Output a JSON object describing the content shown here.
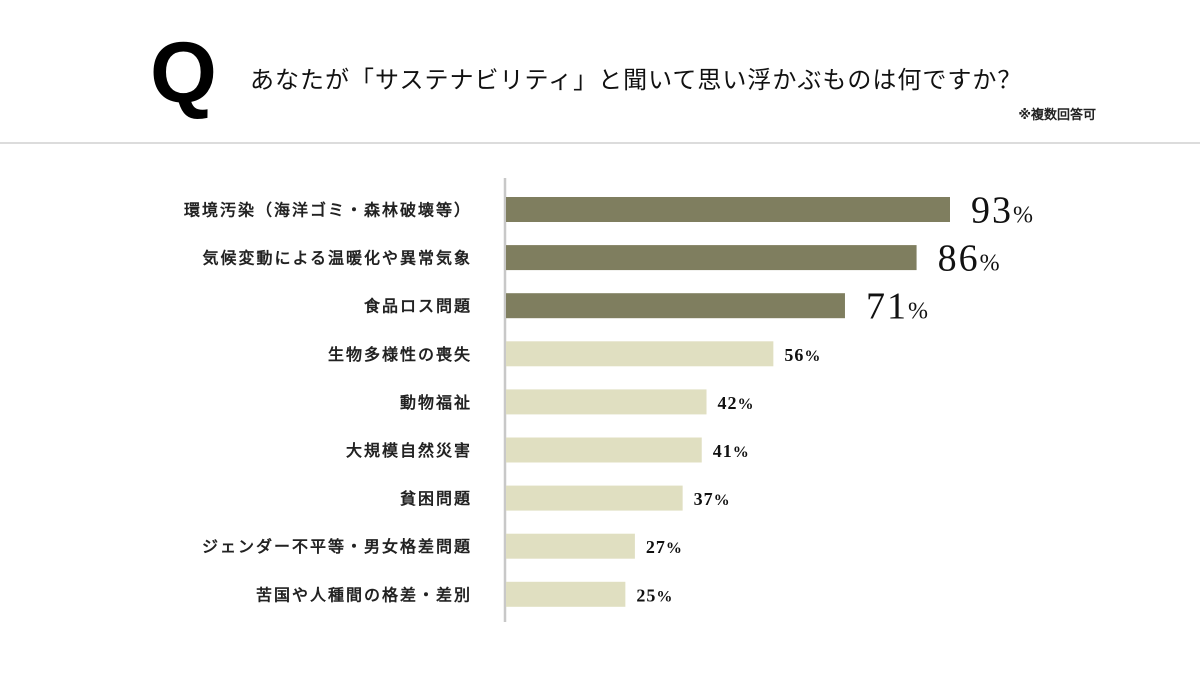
{
  "header": {
    "q_mark": "Q",
    "question": "あなたが「サステナビリティ」と聞いて思い浮かぶものは何ですか？",
    "note": "※複数回答可"
  },
  "chart_data": {
    "type": "bar",
    "orientation": "horizontal",
    "categories": [
      "環境汚染（海洋ゴミ・森林破壊等）",
      "気候変動による温暖化や異常気象",
      "食品ロス問題",
      "生物多様性の喪失",
      "動物福祉",
      "大規模自然災害",
      "貧困問題",
      "ジェンダー不平等・男女格差問題",
      "苦国や人種間の格差・差別"
    ],
    "values": [
      93,
      86,
      71,
      56,
      42,
      41,
      37,
      27,
      25
    ],
    "unit": "%",
    "xlim": [
      0,
      100
    ],
    "grid": false,
    "highlight_top_n": 3,
    "colors": {
      "highlight": "#7f7e5f",
      "normal": "#e0dfc1",
      "axis": "#c8c8c8"
    }
  }
}
